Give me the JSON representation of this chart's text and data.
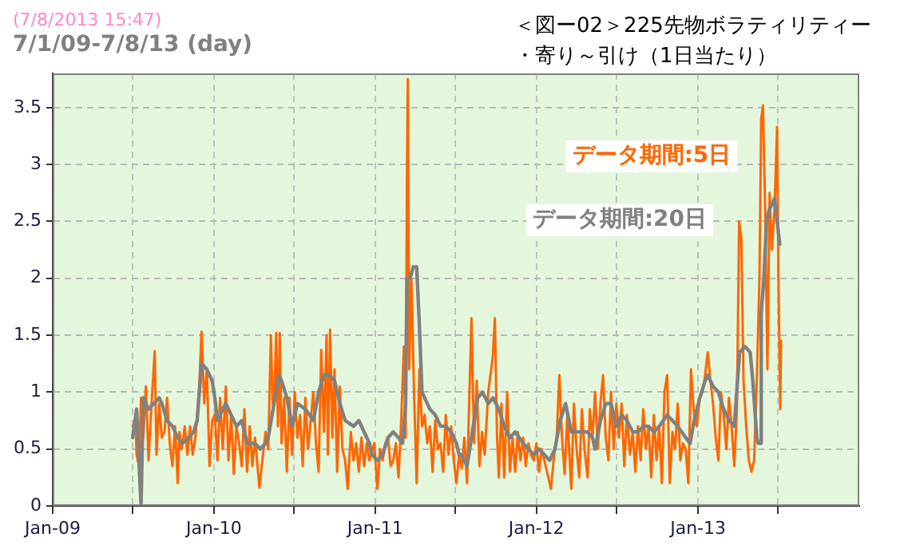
{
  "chart_data": {
    "type": "line",
    "title": "＜図ー02＞225先物ボラティリティー・寄り～引け（1日当たり）",
    "subtitle": "7/1/09-7/8/13 (day)",
    "annotations": [
      "(7/8/2013 15:47)"
    ],
    "series": [
      {
        "name": "データ期間:5日",
        "color": "#ff6600",
        "x": [
          "2009-07-01",
          "2009-07-07",
          "2009-07-10",
          "2009-07-15",
          "2009-07-20",
          "2009-07-25",
          "2009-07-31",
          "2009-08-06",
          "2009-08-12",
          "2009-08-20",
          "2009-08-24",
          "2009-08-30",
          "2009-09-05",
          "2009-09-11",
          "2009-09-17",
          "2009-09-23",
          "2009-09-29",
          "2009-10-05",
          "2009-10-11",
          "2009-10-15",
          "2009-10-20",
          "2009-10-27",
          "2009-11-02",
          "2009-11-08",
          "2009-11-14",
          "2009-11-20",
          "2009-11-28",
          "2009-12-04",
          "2009-12-10",
          "2009-12-16",
          "2009-12-22",
          "2009-12-28",
          "2010-01-03",
          "2010-01-09",
          "2010-01-15",
          "2010-01-21",
          "2010-01-28",
          "2010-02-03",
          "2010-02-09",
          "2010-02-15",
          "2010-02-21",
          "2010-02-27",
          "2010-03-05",
          "2010-03-11",
          "2010-03-17",
          "2010-03-23",
          "2010-03-29",
          "2010-04-04",
          "2010-04-14",
          "2010-04-22",
          "2010-04-28",
          "2010-05-04",
          "2010-05-10",
          "2010-05-14",
          "2010-05-18",
          "2010-05-22",
          "2010-05-26",
          "2010-05-30",
          "2010-06-03",
          "2010-06-09",
          "2010-06-15",
          "2010-06-21",
          "2010-06-27",
          "2010-07-03",
          "2010-07-09",
          "2010-07-15",
          "2010-07-21",
          "2010-07-27",
          "2010-08-02",
          "2010-08-08",
          "2010-08-14",
          "2010-08-20",
          "2010-08-26",
          "2010-09-01",
          "2010-09-07",
          "2010-09-13",
          "2010-09-16",
          "2010-09-21",
          "2010-09-26",
          "2010-10-01",
          "2010-10-07",
          "2010-10-13",
          "2010-10-19",
          "2010-10-25",
          "2010-10-31",
          "2010-11-07",
          "2010-11-13",
          "2010-11-19",
          "2010-11-25",
          "2010-12-01",
          "2010-12-07",
          "2010-12-13",
          "2010-12-19",
          "2010-12-30",
          "2011-01-06",
          "2011-01-12",
          "2011-01-18",
          "2011-01-24",
          "2011-01-30",
          "2011-02-05",
          "2011-02-11",
          "2011-02-17",
          "2011-02-23",
          "2011-03-01",
          "2011-03-07",
          "2011-03-11",
          "2011-03-14",
          "2011-03-16",
          "2011-03-19",
          "2011-03-24",
          "2011-03-30",
          "2011-04-05",
          "2011-04-11",
          "2011-04-17",
          "2011-04-23",
          "2011-04-29",
          "2011-05-05",
          "2011-05-11",
          "2011-05-17",
          "2011-05-23",
          "2011-05-29",
          "2011-06-04",
          "2011-06-10",
          "2011-06-16",
          "2011-06-22",
          "2011-06-28",
          "2011-07-04",
          "2011-07-10",
          "2011-07-16",
          "2011-07-22",
          "2011-07-28",
          "2011-08-07",
          "2011-08-13",
          "2011-08-19",
          "2011-08-25",
          "2011-08-31",
          "2011-09-06",
          "2011-09-14",
          "2011-09-24",
          "2011-09-29",
          "2011-10-04",
          "2011-10-08",
          "2011-10-14",
          "2011-10-20",
          "2011-10-27",
          "2011-11-02",
          "2011-11-08",
          "2011-11-14",
          "2011-11-20",
          "2011-11-26",
          "2011-12-02",
          "2011-12-08",
          "2011-12-14",
          "2011-12-20",
          "2011-12-26",
          "2012-01-01",
          "2012-01-07",
          "2012-01-13",
          "2012-01-19",
          "2012-01-25",
          "2012-02-03",
          "2012-02-09",
          "2012-02-16",
          "2012-02-22",
          "2012-02-28",
          "2012-03-05",
          "2012-03-11",
          "2012-03-20",
          "2012-03-26",
          "2012-04-01",
          "2012-04-07",
          "2012-04-13",
          "2012-04-19",
          "2012-04-26",
          "2012-05-01",
          "2012-05-07",
          "2012-05-13",
          "2012-05-19",
          "2012-05-25",
          "2012-05-31",
          "2012-06-06",
          "2012-06-12",
          "2012-06-18",
          "2012-06-24",
          "2012-06-30",
          "2012-07-06",
          "2012-07-12",
          "2012-07-18",
          "2012-07-24",
          "2012-07-31",
          "2012-08-06",
          "2012-08-12",
          "2012-08-18",
          "2012-08-24",
          "2012-08-30",
          "2012-09-05",
          "2012-09-11",
          "2012-09-17",
          "2012-09-23",
          "2012-09-29",
          "2012-10-05",
          "2012-10-11",
          "2012-10-17",
          "2012-10-23",
          "2012-10-29",
          "2012-11-04",
          "2012-11-10",
          "2012-11-16",
          "2012-11-22",
          "2012-11-28",
          "2012-12-04",
          "2012-12-10",
          "2012-12-16",
          "2012-12-23",
          "2012-12-29",
          "2013-01-05",
          "2013-01-11",
          "2013-01-17",
          "2013-01-23",
          "2013-01-29",
          "2013-02-04",
          "2013-02-10",
          "2013-02-16",
          "2013-02-22",
          "2013-02-28",
          "2013-03-06",
          "2013-03-12",
          "2013-03-18",
          "2013-03-24",
          "2013-03-30",
          "2013-04-04",
          "2013-04-09",
          "2013-04-14",
          "2013-04-20",
          "2013-04-26",
          "2013-05-02",
          "2013-05-08",
          "2013-05-14",
          "2013-05-20",
          "2013-05-24",
          "2013-05-28",
          "2013-06-02",
          "2013-06-07",
          "2013-06-12",
          "2013-06-17",
          "2013-06-23",
          "2013-06-29",
          "2013-07-02",
          "2013-07-06",
          "2013-07-08"
        ],
        "values": [
          0.7,
          0.75,
          0.45,
          0.35,
          0.95,
          0.6,
          1.05,
          0.4,
          0.85,
          1.36,
          0.45,
          0.9,
          0.6,
          0.65,
          0.95,
          0.55,
          0.35,
          0.7,
          0.2,
          0.65,
          0.5,
          0.7,
          0.45,
          0.7,
          0.45,
          0.6,
          1.0,
          1.53,
          0.9,
          1.2,
          0.35,
          0.75,
          0.8,
          0.4,
          0.95,
          0.5,
          1.05,
          0.4,
          0.8,
          0.28,
          0.7,
          0.55,
          0.35,
          0.85,
          0.3,
          0.7,
          0.35,
          0.6,
          0.16,
          0.45,
          0.65,
          0.5,
          1.5,
          0.9,
          1.0,
          1.52,
          0.7,
          1.52,
          0.55,
          0.95,
          0.3,
          0.95,
          0.45,
          1.0,
          0.6,
          0.8,
          0.35,
          0.95,
          0.5,
          0.75,
          1.0,
          0.55,
          0.3,
          1.37,
          0.65,
          1.5,
          0.45,
          1.55,
          0.6,
          1.2,
          0.3,
          1.05,
          0.5,
          0.4,
          0.15,
          0.65,
          0.4,
          0.55,
          0.3,
          0.6,
          0.35,
          0.55,
          0.4,
          0.55,
          0.15,
          0.5,
          0.4,
          0.55,
          0.6,
          0.35,
          0.4,
          0.55,
          0.25,
          0.75,
          1.4,
          0.6,
          2.9,
          3.75,
          1.2,
          2.0,
          1.0,
          0.2,
          1.2,
          0.7,
          0.8,
          0.55,
          0.7,
          0.3,
          0.75,
          0.5,
          0.55,
          0.3,
          0.8,
          0.45,
          0.7,
          0.4,
          0.2,
          0.45,
          0.33,
          0.6,
          0.2,
          1.65,
          0.55,
          1.1,
          0.35,
          0.65,
          0.45,
          1.0,
          1.3,
          1.65,
          0.6,
          0.25,
          0.9,
          0.25,
          1.0,
          0.3,
          0.6,
          0.3,
          0.65,
          0.4,
          0.6,
          0.35,
          0.55,
          0.45,
          0.4,
          0.55,
          0.3,
          0.5,
          0.4,
          0.3,
          0.15,
          0.4,
          0.6,
          1.15,
          0.6,
          0.28,
          0.8,
          0.15,
          0.9,
          0.5,
          0.25,
          0.85,
          0.5,
          0.25,
          0.85,
          0.6,
          1.0,
          0.5,
          0.9,
          1.15,
          0.6,
          0.4,
          1.0,
          0.5,
          0.9,
          0.6,
          0.9,
          0.35,
          0.8,
          0.45,
          0.65,
          0.3,
          0.7,
          0.4,
          0.85,
          0.5,
          0.7,
          0.25,
          0.8,
          0.4,
          0.7,
          0.2,
          1.0,
          1.15,
          0.2,
          0.65,
          0.5,
          0.9,
          0.4,
          0.55,
          0.5,
          0.2,
          1.2,
          0.8,
          0.7,
          0.95,
          1.0,
          1.15,
          1.35,
          1.1,
          0.9,
          0.6,
          0.4,
          1.0,
          0.8,
          0.5,
          0.95,
          0.7,
          0.35,
          0.85,
          2.5,
          2.35,
          1.1,
          0.7,
          0.4,
          0.3,
          0.4,
          1.1,
          2.0,
          3.4,
          3.52,
          2.6,
          1.2,
          2.75,
          2.25,
          2.6,
          3.33,
          2.0,
          0.85,
          1.45
        ]
      },
      {
        "name": "データ期間:20日",
        "color": "#808080",
        "x": [
          "2009-07-01",
          "2009-07-10",
          "2009-07-20",
          "2009-07-25",
          "2009-08-06",
          "2009-08-18",
          "2009-08-30",
          "2009-09-05",
          "2009-09-17",
          "2009-09-29",
          "2009-10-11",
          "2009-10-22",
          "2009-11-04",
          "2009-11-16",
          "2009-11-24",
          "2009-12-04",
          "2009-12-16",
          "2009-12-28",
          "2010-01-03",
          "2010-01-09",
          "2010-01-21",
          "2010-01-28",
          "2010-02-09",
          "2010-02-21",
          "2010-03-05",
          "2010-03-17",
          "2010-04-04",
          "2010-04-16",
          "2010-04-28",
          "2010-05-04",
          "2010-05-17",
          "2010-05-28",
          "2010-06-03",
          "2010-06-15",
          "2010-06-27",
          "2010-07-09",
          "2010-07-27",
          "2010-08-14",
          "2010-08-26",
          "2010-09-07",
          "2010-09-19",
          "2010-10-01",
          "2010-10-13",
          "2010-10-25",
          "2010-11-13",
          "2010-11-25",
          "2010-12-07",
          "2010-12-19",
          "2010-12-25",
          "2011-01-06",
          "2011-01-18",
          "2011-01-30",
          "2011-02-11",
          "2011-02-23",
          "2011-03-04",
          "2011-03-11",
          "2011-03-14",
          "2011-03-21",
          "2011-03-28",
          "2011-04-05",
          "2011-04-11",
          "2011-04-17",
          "2011-04-23",
          "2011-05-05",
          "2011-05-17",
          "2011-05-29",
          "2011-06-10",
          "2011-06-22",
          "2011-07-04",
          "2011-07-10",
          "2011-07-16",
          "2011-07-28",
          "2011-08-07",
          "2011-08-21",
          "2011-09-01",
          "2011-09-14",
          "2011-09-25",
          "2011-10-08",
          "2011-10-20",
          "2011-11-02",
          "2011-11-14",
          "2011-12-02",
          "2011-12-14",
          "2011-12-26",
          "2012-01-07",
          "2012-01-19",
          "2012-01-31",
          "2012-02-12",
          "2012-02-24",
          "2012-03-07",
          "2012-03-20",
          "2012-04-07",
          "2012-04-25",
          "2012-05-07",
          "2012-05-13",
          "2012-05-25",
          "2012-06-06",
          "2012-06-18",
          "2012-06-30",
          "2012-07-12",
          "2012-07-24",
          "2012-08-06",
          "2012-08-18",
          "2012-08-30",
          "2012-09-11",
          "2012-09-23",
          "2012-10-05",
          "2012-10-23",
          "2012-11-04",
          "2012-11-16",
          "2012-12-04",
          "2012-12-14",
          "2012-12-23",
          "2013-01-05",
          "2013-01-17",
          "2013-01-23",
          "2013-02-04",
          "2013-02-16",
          "2013-02-28",
          "2013-03-12",
          "2013-03-24",
          "2013-04-05",
          "2013-04-17",
          "2013-04-29",
          "2013-05-05",
          "2013-05-14",
          "2013-05-17",
          "2013-05-22",
          "2013-05-24",
          "2013-05-30",
          "2013-06-05",
          "2013-06-11",
          "2013-06-23",
          "2013-06-29",
          "2013-07-05"
        ],
        "values": [
          0.6,
          0.85,
          0,
          0.95,
          0.85,
          0.9,
          0.95,
          0.9,
          0.75,
          0.7,
          0.6,
          0.55,
          0.6,
          0.65,
          0.75,
          1.25,
          1.2,
          1.1,
          0.95,
          0.75,
          0.85,
          0.9,
          0.8,
          0.7,
          0.75,
          0.55,
          0.55,
          0.5,
          0.55,
          0.6,
          0.9,
          1.15,
          1.1,
          0.95,
          0.7,
          0.9,
          0.85,
          0.75,
          1.0,
          1.15,
          1.15,
          1.1,
          0.9,
          0.75,
          0.7,
          0.75,
          0.65,
          0.55,
          0.45,
          0.4,
          0.45,
          0.6,
          0.65,
          0.6,
          0.55,
          0.9,
          2.0,
          2.0,
          2.1,
          2.1,
          1.6,
          1.0,
          0.95,
          0.85,
          0.8,
          0.7,
          0.7,
          0.65,
          0.55,
          0.45,
          0.45,
          0.35,
          0.6,
          0.95,
          1.0,
          0.9,
          0.95,
          0.85,
          0.7,
          0.6,
          0.65,
          0.55,
          0.5,
          0.45,
          0.5,
          0.45,
          0.4,
          0.5,
          0.75,
          0.9,
          0.65,
          0.65,
          0.65,
          0.6,
          0.5,
          0.75,
          0.9,
          0.9,
          0.7,
          0.8,
          0.75,
          0.65,
          0.65,
          0.7,
          0.7,
          0.65,
          0.7,
          0.8,
          0.75,
          0.7,
          0.6,
          0.55,
          0.75,
          0.95,
          1.1,
          1.15,
          1.05,
          1.0,
          0.85,
          0.75,
          0.7,
          1.35,
          1.4,
          1.35,
          1.1,
          0.6,
          0.55,
          0.55,
          1.7,
          2.0,
          2.5,
          2.6,
          2.7,
          2.5,
          2.3
        ]
      }
    ],
    "xlim": [
      "2009-01-01",
      "2014-01-01"
    ],
    "xticks": [
      {
        "value": "2009-01-01",
        "label": "Jan-09"
      },
      {
        "value": "2009-07-01",
        "label": null
      },
      {
        "value": "2010-01-01",
        "label": "Jan-10"
      },
      {
        "value": "2010-07-01",
        "label": null
      },
      {
        "value": "2011-01-01",
        "label": "Jan-11"
      },
      {
        "value": "2011-07-01",
        "label": null
      },
      {
        "value": "2012-01-01",
        "label": "Jan-12"
      },
      {
        "value": "2012-07-01",
        "label": null
      },
      {
        "value": "2013-01-01",
        "label": "Jan-13"
      },
      {
        "value": "2013-07-01",
        "label": null
      }
    ],
    "ylim": [
      0,
      3.8
    ],
    "yticks": [
      0,
      0.5,
      1,
      1.5,
      2,
      2.5,
      3,
      3.5
    ],
    "grid": true,
    "marker": "none",
    "line_style": "solid"
  }
}
